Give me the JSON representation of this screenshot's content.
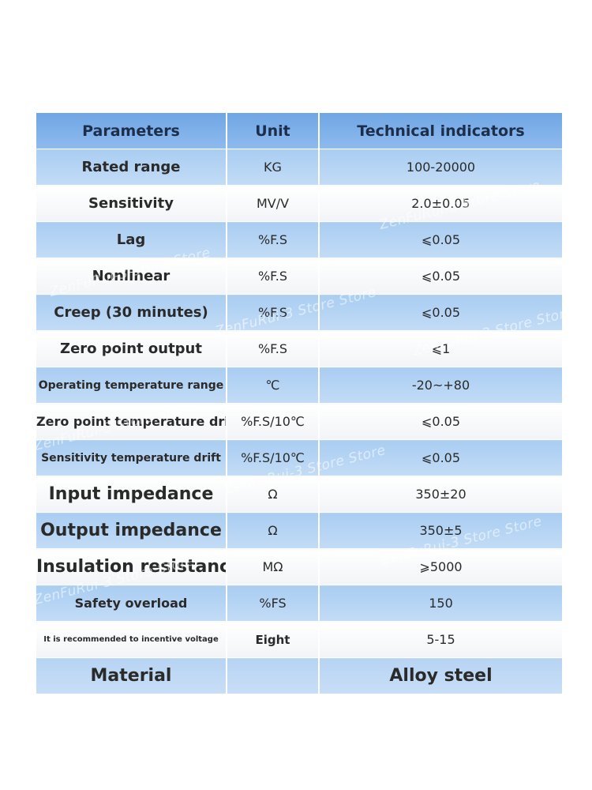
{
  "table": {
    "header": {
      "parameter": "Parameters",
      "unit": "Unit",
      "indicator": "Technical indicators"
    },
    "rows": [
      {
        "parameter": "Rated range",
        "unit": "KG",
        "indicator": "100-20000"
      },
      {
        "parameter": "Sensitivity",
        "unit": "MV/V",
        "indicator": "2.0±0.05"
      },
      {
        "parameter": "Lag",
        "unit": "%F.S",
        "indicator": "⩽0.05"
      },
      {
        "parameter": "Nonlinear",
        "unit": "%F.S",
        "indicator": "⩽0.05"
      },
      {
        "parameter": "Creep (30 minutes)",
        "unit": "%F.S",
        "indicator": "⩽0.05"
      },
      {
        "parameter": "Zero point output",
        "unit": "%F.S",
        "indicator": "⩽1"
      },
      {
        "parameter": "Operating temperature range",
        "unit": "℃",
        "indicator": "-20~+80"
      },
      {
        "parameter": "Zero point temperature drift",
        "unit": "%F.S/10℃",
        "indicator": "⩽0.05"
      },
      {
        "parameter": "Sensitivity temperature drift",
        "unit": "%F.S/10℃",
        "indicator": "⩽0.05"
      },
      {
        "parameter": "Input impedance",
        "unit": "Ω",
        "indicator": "350±20"
      },
      {
        "parameter": "Output impedance",
        "unit": "Ω",
        "indicator": "350±5"
      },
      {
        "parameter": "Insulation resistance",
        "unit": "MΩ",
        "indicator": "⩾5000"
      },
      {
        "parameter": "Safety overload",
        "unit": "%FS",
        "indicator": "150"
      },
      {
        "parameter": "It is recommended to incentive voltage",
        "unit": "Eight",
        "indicator": "5-15"
      }
    ],
    "footer": {
      "parameter": "Material",
      "unit": "",
      "indicator": "Alloy steel"
    }
  },
  "watermark": {
    "text": "ZenFuRui-3 Store Store"
  }
}
